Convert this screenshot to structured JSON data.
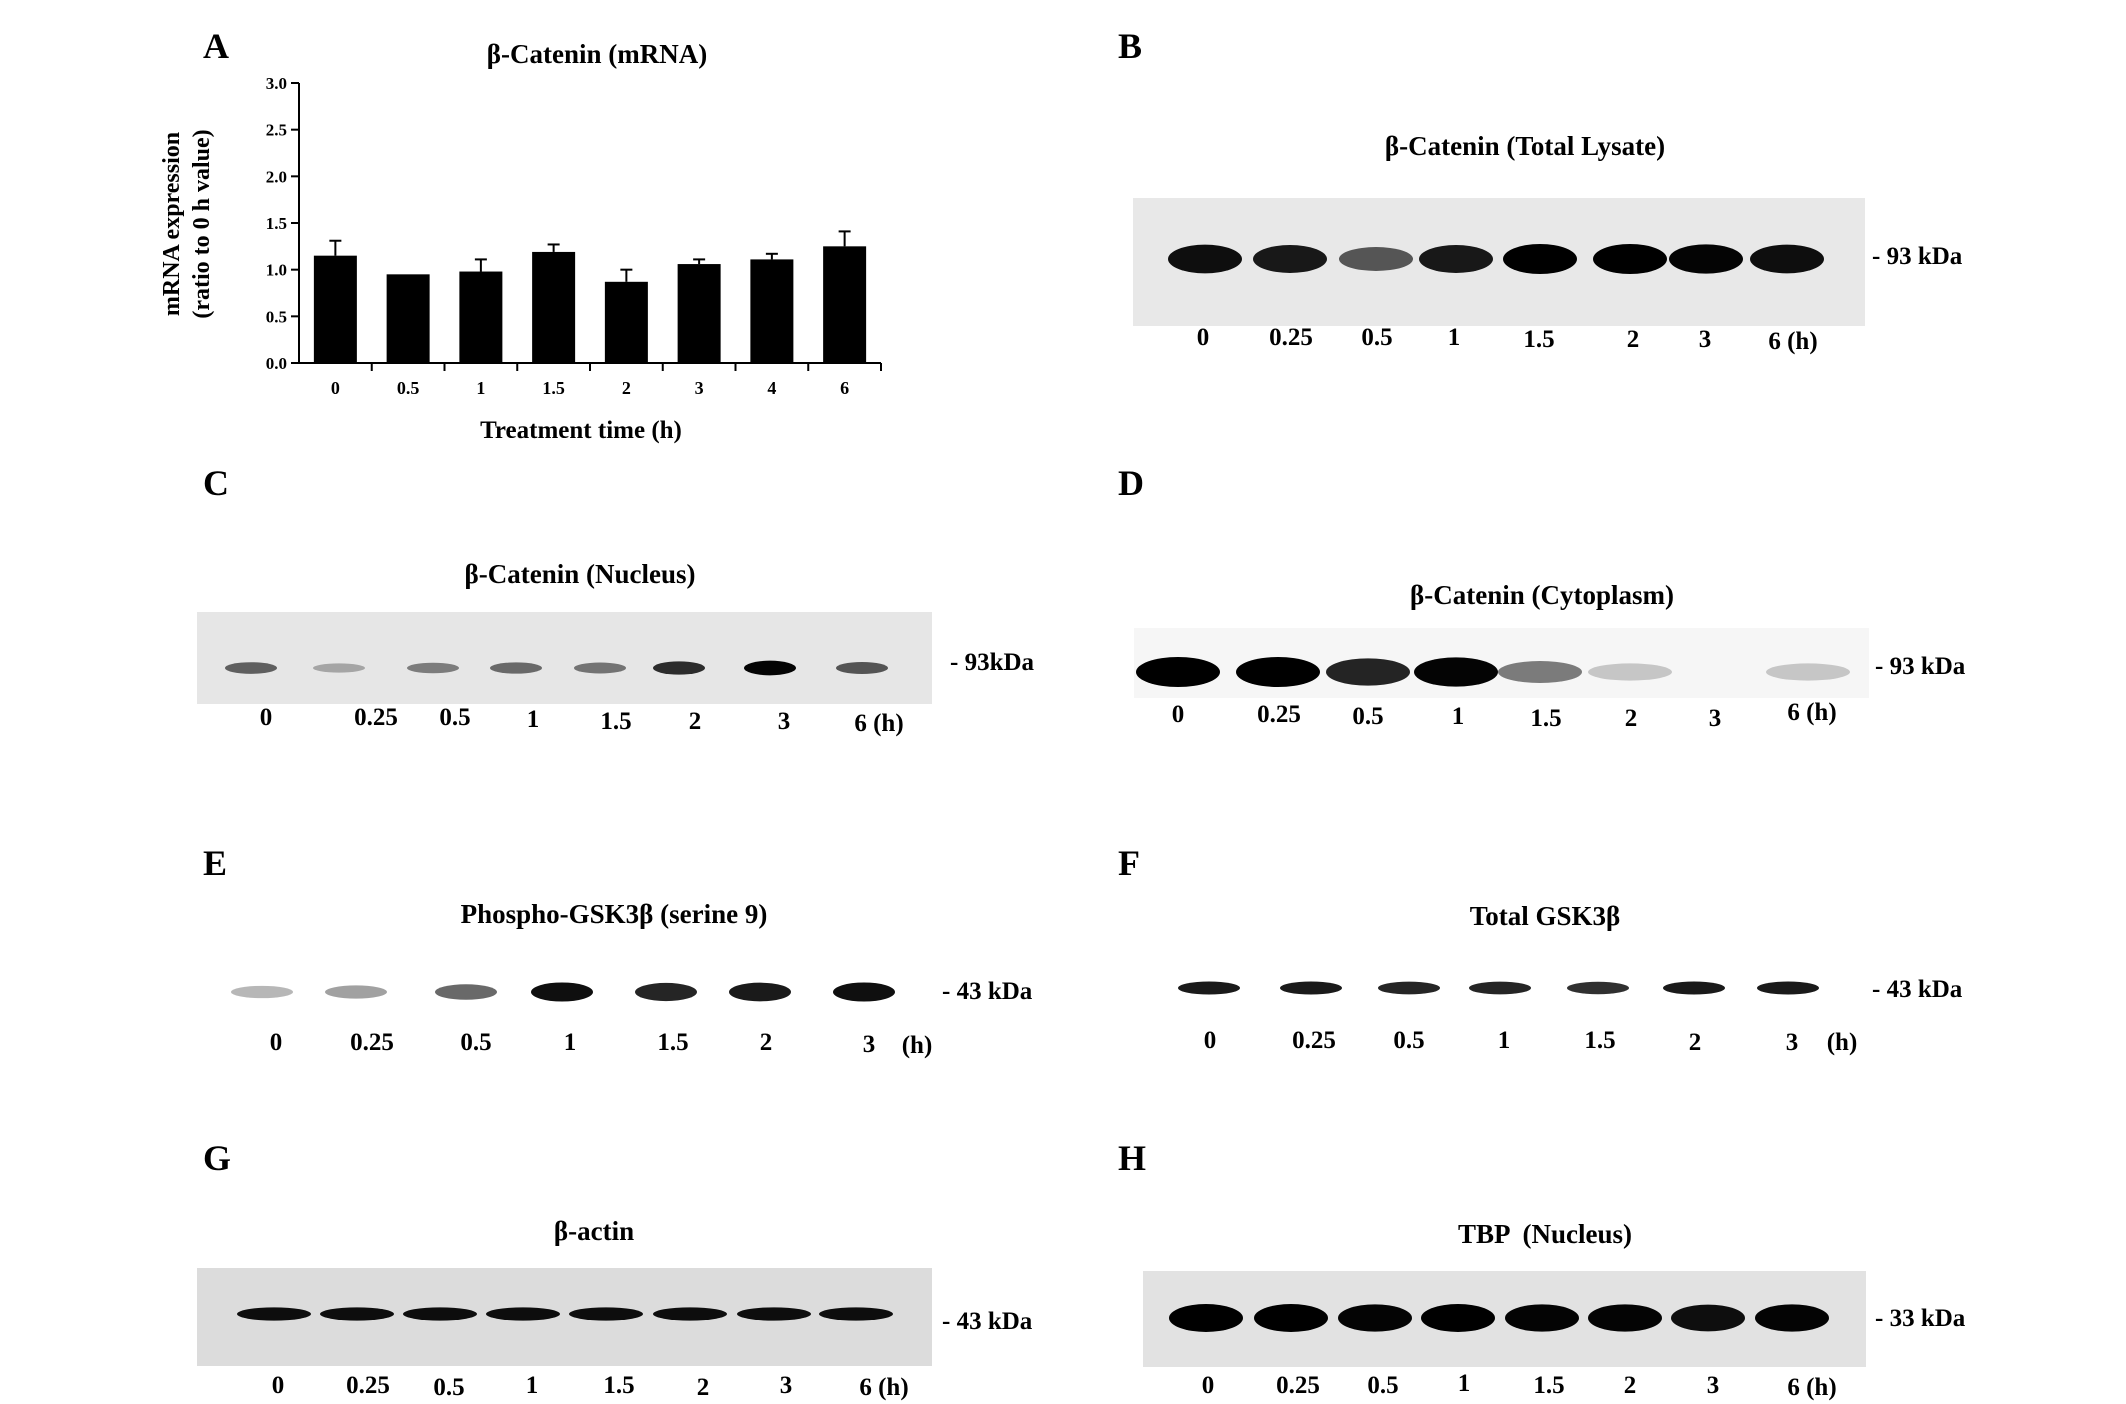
{
  "panels": {
    "A": {
      "letter": "A",
      "chart_data": {
        "type": "bar",
        "title": "β-Catenin (mRNA)",
        "xlabel": "Treatment time (h)",
        "ylabel_line1": "mRNA expression",
        "ylabel_line2": "(ratio to 0 h value)",
        "categories": [
          "0",
          "0.5",
          "1",
          "1.5",
          "2",
          "3",
          "4",
          "6"
        ],
        "values": [
          1.15,
          0.95,
          0.98,
          1.19,
          0.87,
          1.06,
          1.11,
          1.25
        ],
        "errors": [
          0.16,
          0.0,
          0.13,
          0.08,
          0.13,
          0.05,
          0.06,
          0.16
        ],
        "ylim": [
          0,
          3.0
        ],
        "yticks": [
          "0.0",
          "0.5",
          "1.0",
          "1.5",
          "2.0",
          "2.5",
          "3.0"
        ],
        "grid": false,
        "bar_color": "#000000"
      }
    },
    "B": {
      "letter": "B",
      "title": "β-Catenin (Total Lysate)",
      "marker": "- 93 kDa",
      "lanes": [
        "0",
        "0.25",
        "0.5",
        "1",
        "1.5",
        "2",
        "3",
        "6 (h)"
      ],
      "band_intensity": [
        0.9,
        0.85,
        0.55,
        0.85,
        1.0,
        1.0,
        0.95,
        0.9
      ]
    },
    "C": {
      "letter": "C",
      "title": "β-Catenin (Nucleus)",
      "marker": "- 93kDa",
      "lanes": [
        "0",
        "0.25",
        "0.5",
        "1",
        "1.5",
        "2",
        "3",
        "6 (h)"
      ],
      "band_intensity": [
        0.5,
        0.15,
        0.35,
        0.45,
        0.4,
        0.75,
        0.95,
        0.55
      ]
    },
    "D": {
      "letter": "D",
      "title": "β-Catenin (Cytoplasm)",
      "marker": "- 93 kDa",
      "lanes": [
        "0",
        "0.25",
        "0.5",
        "1",
        "1.5",
        "2",
        "3",
        "6 (h)"
      ],
      "band_intensity": [
        1.0,
        1.0,
        0.8,
        0.95,
        0.4,
        0.05,
        0.0,
        0.05
      ]
    },
    "E": {
      "letter": "E",
      "title": "Phospho-GSK3β (serine 9)",
      "marker": "- 43 kDa",
      "lanes": [
        "0",
        "0.25",
        "0.5",
        "1",
        "1.5",
        "2",
        "3"
      ],
      "unit": "(h)",
      "band_intensity": [
        0.15,
        0.25,
        0.5,
        0.9,
        0.8,
        0.85,
        0.9
      ]
    },
    "F": {
      "letter": "F",
      "title": "Total GSK3β",
      "marker": "- 43 kDa",
      "lanes": [
        "0",
        "0.25",
        "0.5",
        "1",
        "1.5",
        "2",
        "3"
      ],
      "unit": "(h)",
      "band_intensity": [
        0.85,
        0.85,
        0.8,
        0.8,
        0.75,
        0.85,
        0.85
      ]
    },
    "G": {
      "letter": "G",
      "title": "β-actin",
      "marker": "- 43 kDa",
      "lanes": [
        "0",
        "0.25",
        "0.5",
        "1",
        "1.5",
        "2",
        "3",
        "6 (h)"
      ],
      "band_intensity": [
        0.9,
        0.9,
        0.9,
        0.9,
        0.9,
        0.9,
        0.9,
        0.9
      ]
    },
    "H": {
      "letter": "H",
      "title": "TBP  (Nucleus)",
      "marker": "- 33 kDa",
      "lanes": [
        "0",
        "0.25",
        "0.5",
        "1",
        "1.5",
        "2",
        "3",
        "6 (h)"
      ],
      "band_intensity": [
        1.0,
        1.0,
        0.95,
        1.0,
        0.95,
        0.95,
        0.9,
        0.95
      ]
    }
  }
}
